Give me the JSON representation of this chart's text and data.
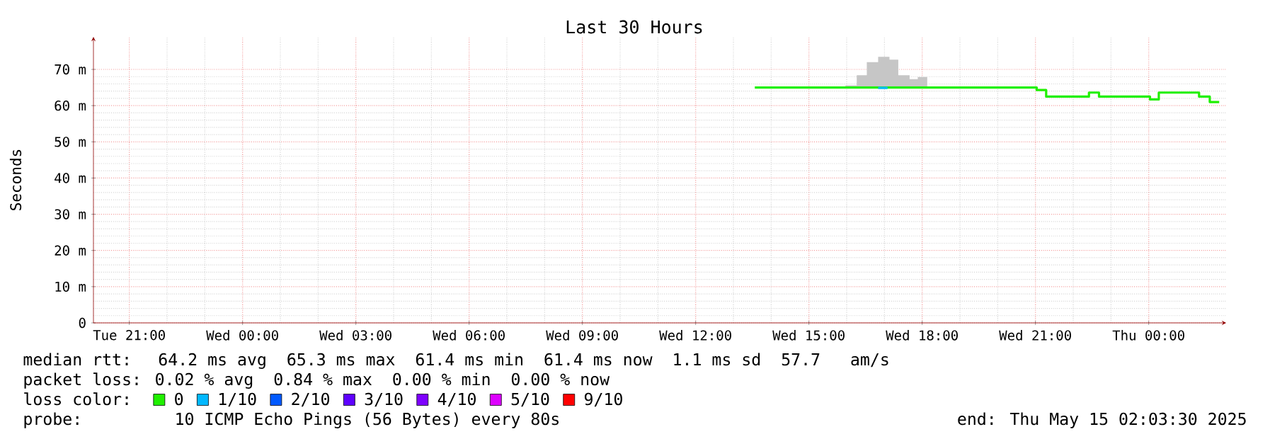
{
  "chart_data": {
    "type": "step",
    "title": "Last 30 Hours",
    "ylabel": "Seconds",
    "xlim": [
      "2025-05-13T20:03",
      "2025-05-15T02:03"
    ],
    "xticks": [
      {
        "value": "2025-05-13T21:00",
        "label": "Tue 21:00"
      },
      {
        "value": "2025-05-14T00:00",
        "label": "Wed 00:00"
      },
      {
        "value": "2025-05-14T03:00",
        "label": "Wed 03:00"
      },
      {
        "value": "2025-05-14T06:00",
        "label": "Wed 06:00"
      },
      {
        "value": "2025-05-14T09:00",
        "label": "Wed 09:00"
      },
      {
        "value": "2025-05-14T12:00",
        "label": "Wed 12:00"
      },
      {
        "value": "2025-05-14T15:00",
        "label": "Wed 15:00"
      },
      {
        "value": "2025-05-14T18:00",
        "label": "Wed 18:00"
      },
      {
        "value": "2025-05-14T21:00",
        "label": "Wed 21:00"
      },
      {
        "value": "2025-05-15T00:00",
        "label": "Thu 00:00"
      }
    ],
    "ylim": [
      0,
      79
    ],
    "yticks": [
      {
        "value": 0,
        "label": "0"
      },
      {
        "value": 10,
        "label": "10 m"
      },
      {
        "value": 20,
        "label": "20 m"
      },
      {
        "value": 30,
        "label": "30 m"
      },
      {
        "value": 40,
        "label": "40 m"
      },
      {
        "value": 50,
        "label": "50 m"
      },
      {
        "value": 60,
        "label": "60 m"
      },
      {
        "value": 70,
        "label": "70 m"
      }
    ],
    "grid": true,
    "legend": "bottom",
    "legend_title": "loss color:",
    "series": [
      {
        "name": "0",
        "color": "#20f000",
        "x": [
          "2025-05-14T13:34",
          "2025-05-14T15:58",
          "2025-05-14T16:16",
          "2025-05-14T16:32",
          "2025-05-14T16:50",
          "2025-05-14T17:08",
          "2025-05-14T17:22",
          "2025-05-14T17:40",
          "2025-05-14T17:53",
          "2025-05-14T18:08",
          "2025-05-14T21:02",
          "2025-05-14T21:17",
          "2025-05-14T22:25",
          "2025-05-14T22:41",
          "2025-05-15T00:02",
          "2025-05-15T00:16",
          "2025-05-15T01:20",
          "2025-05-15T01:37",
          "2025-05-15T01:52"
        ],
        "values": [
          65,
          65,
          65,
          65,
          65,
          65,
          65,
          65,
          65,
          65,
          64.3,
          62.5,
          63.6,
          62.5,
          61.7,
          63.6,
          62.5,
          61,
          61
        ],
        "lower": [
          null,
          65,
          65,
          65,
          65,
          65,
          65,
          65,
          65,
          65,
          null,
          null,
          null,
          null,
          null,
          null,
          null,
          null,
          null
        ],
        "upper": [
          null,
          65.6,
          68.4,
          72,
          73.5,
          72.7,
          68.4,
          67.3,
          67.9,
          67.9,
          null,
          null,
          null,
          null,
          null,
          null,
          null,
          null,
          null
        ]
      },
      {
        "name": "1/10",
        "color": "#00b8ff",
        "x": [
          "2025-05-14T16:50",
          "2025-05-14T17:05"
        ],
        "values": [
          64.9,
          64.9
        ]
      },
      {
        "name": "2/10",
        "color": "#0059ff"
      },
      {
        "name": "3/10",
        "color": "#5e00ff"
      },
      {
        "name": "4/10",
        "color": "#7e00ff"
      },
      {
        "name": "5/10",
        "color": "#dd00ff"
      },
      {
        "name": "9/10",
        "color": "#ff0000"
      }
    ],
    "annotations": [
      "median rtt:  64.2 ms avg  65.3 ms max  61.4 ms min  61.4 ms now  1.1 ms sd  57.7   am/s",
      "packet loss: 0.02 % avg  0.84 % max  0.00 % min  0.00 % now",
      "probe:       10 ICMP Echo Pings (56 Bytes) every 80s",
      "end: Thu May 15 02:03:30 2025"
    ]
  }
}
